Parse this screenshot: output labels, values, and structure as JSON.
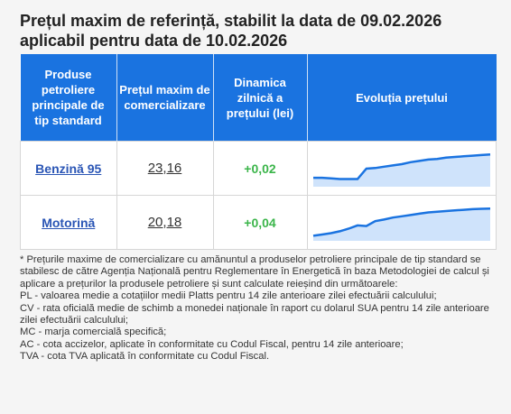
{
  "title_line1": "Prețul maxim de referință, stabilit la data de 09.02.2026",
  "title_line2": "aplicabil pentru data de 10.02.2026",
  "table": {
    "headers": {
      "product": "Produse petroliere principale de tip standard",
      "price": "Prețul maxim de comercializare",
      "change": "Dinamica zilnică a prețului (lei)",
      "evolution": "Evoluția prețului"
    },
    "rows": [
      {
        "product": "Benzină 95",
        "price": "23,16",
        "change": "+0,02",
        "trend": [
          0.22,
          0.22,
          0.2,
          0.18,
          0.18,
          0.18,
          0.5,
          0.52,
          0.56,
          0.6,
          0.64,
          0.7,
          0.74,
          0.78,
          0.8,
          0.84,
          0.86,
          0.88,
          0.9,
          0.92,
          0.94
        ]
      },
      {
        "product": "Motorină",
        "price": "20,18",
        "change": "+0,04",
        "trend": [
          0.1,
          0.14,
          0.18,
          0.24,
          0.32,
          0.42,
          0.4,
          0.55,
          0.6,
          0.66,
          0.7,
          0.74,
          0.78,
          0.82,
          0.84,
          0.86,
          0.88,
          0.9,
          0.92,
          0.93,
          0.94
        ]
      }
    ]
  },
  "notes": [
    "* Prețurile maxime de comercializare cu amănuntul a produselor petroliere principale de tip standard se stabilesc de către Agenția Națională pentru Reglementare în Energetică în baza Metodologiei de calcul și aplicare a prețurilor la produsele petroliere și sunt calculate reieșind din următoarele:",
    "PL - valoarea medie a cotațiilor medii Platts pentru 14 zile anterioare zilei efectuării calculului;",
    "CV - rata oficială medie de schimb a monedei naționale în raport cu dolarul SUA pentru 14 zile anterioare zilei efectuării calculului;",
    "MC - marja comercială specifică;",
    "AC - cota accizelor, aplicate în conformitate cu Codul Fiscal, pentru 14 zile anterioare;",
    "TVA - cota TVA aplicată în conformitate cu Codul Fiscal."
  ],
  "colors": {
    "header_bg": "#1a73e0",
    "link": "#2a55b5",
    "positive": "#3bb54a",
    "spark_line": "#1a73e0",
    "spark_fill": "#cfe3fb"
  }
}
